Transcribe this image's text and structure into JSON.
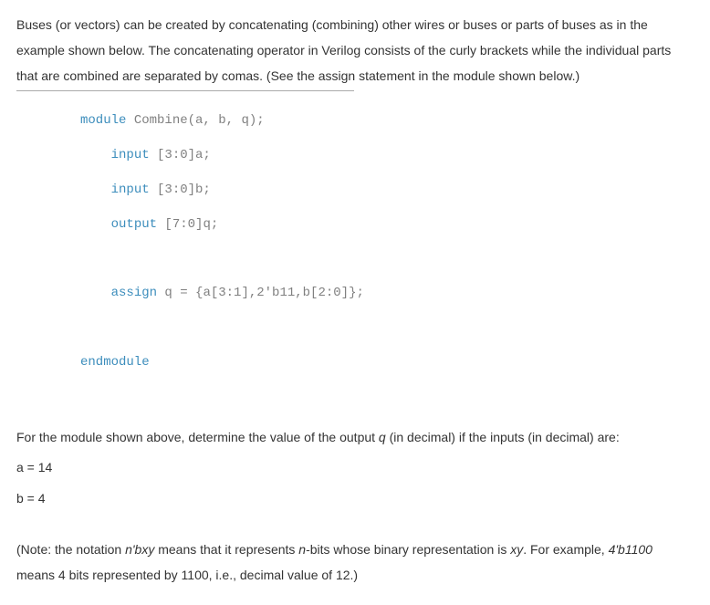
{
  "intro": {
    "line1": "Buses (or vectors) can be created by concatenating (combining) other wires or buses or parts of buses as in the",
    "line2": "example shown below. The concatenating operator in Verilog consists of the curly brackets while the individual parts",
    "line3": "that are combined are separated by comas. (See the assign statement in the module shown below.)"
  },
  "code": {
    "module_kw": "module",
    "module_rest": " Combine(a, b, q);",
    "input_kw1": "input",
    "input_rest1": " [3:0]a;",
    "input_kw2": "input",
    "input_rest2": " [3:0]b;",
    "output_kw": "output",
    "output_rest": " [7:0]q;",
    "assign_kw": "assign",
    "assign_rest": " q = {a[3:1],2'b11,b[2:0]};",
    "endmodule_kw": "endmodule"
  },
  "question": {
    "prompt_pre": "For the module shown above, determine the value of the output ",
    "q_var": "q",
    "prompt_post": " (in decimal) if the inputs (in decimal) are:",
    "a_eq": "a = 14",
    "b_eq": "b = 4"
  },
  "note": {
    "pre": "(Note: the notation ",
    "nbxy": "n'bxy",
    "mid1": " means that it represents ",
    "n": "n",
    "mid2": "-bits whose binary representation is ",
    "xy": "xy",
    "mid3": ". For example, ",
    "ex": "4'b1100",
    "post": "means 4 bits represented by 1100, i.e., decimal value of 12.)"
  },
  "style": {
    "body_font_size": 14,
    "code_font_size": 14,
    "code_color": "#808080",
    "keyword_color": "#3c8dbc",
    "text_color": "#333333",
    "background": "#ffffff"
  }
}
